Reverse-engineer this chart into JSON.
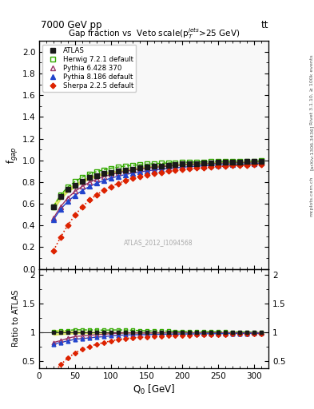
{
  "title_top": "7000 GeV pp",
  "title_right": "tt",
  "main_title": "Gap fraction vs  Veto scale(p$_T^{jets}$>25 GeV)",
  "watermark": "ATLAS_2012_I1094568",
  "right_label": "Rivet 3.1.10, ≥ 100k events",
  "arxiv_label": "[arXiv:1306.3436]",
  "mcplots_label": "mcplots.cern.ch",
  "xlabel": "Q$_0$ [GeV]",
  "ylabel_main": "f$_{gap}$",
  "ylabel_ratio": "Ratio to ATLAS",
  "xlim": [
    0,
    320
  ],
  "ylim_main": [
    0.0,
    2.1
  ],
  "ylim_ratio": [
    0.38,
    2.1
  ],
  "yticks_main": [
    0.0,
    0.2,
    0.4,
    0.6,
    0.8,
    1.0,
    1.2,
    1.4,
    1.6,
    1.8,
    2.0
  ],
  "yticks_ratio": [
    0.5,
    1.0,
    1.5,
    2.0
  ],
  "ytick_labels_ratio": [
    "0.5",
    "1",
    "1.5",
    "2"
  ],
  "xticks": [
    0,
    50,
    100,
    150,
    200,
    250,
    300
  ],
  "Q0": [
    20,
    30,
    40,
    50,
    60,
    70,
    80,
    90,
    100,
    110,
    120,
    130,
    140,
    150,
    160,
    170,
    180,
    190,
    200,
    210,
    220,
    230,
    240,
    250,
    260,
    270,
    280,
    290,
    300,
    310
  ],
  "atlas_y": [
    0.57,
    0.67,
    0.73,
    0.77,
    0.81,
    0.84,
    0.86,
    0.88,
    0.89,
    0.9,
    0.91,
    0.92,
    0.93,
    0.94,
    0.945,
    0.95,
    0.955,
    0.96,
    0.965,
    0.97,
    0.972,
    0.975,
    0.978,
    0.98,
    0.982,
    0.984,
    0.986,
    0.988,
    0.99,
    0.992
  ],
  "atlas_err": [
    0.025,
    0.022,
    0.018,
    0.014,
    0.012,
    0.01,
    0.009,
    0.008,
    0.007,
    0.007,
    0.006,
    0.006,
    0.006,
    0.005,
    0.005,
    0.005,
    0.005,
    0.004,
    0.004,
    0.004,
    0.004,
    0.003,
    0.003,
    0.003,
    0.003,
    0.003,
    0.003,
    0.003,
    0.003,
    0.003
  ],
  "herwig_y": [
    0.575,
    0.685,
    0.755,
    0.805,
    0.845,
    0.875,
    0.897,
    0.913,
    0.927,
    0.938,
    0.947,
    0.954,
    0.96,
    0.965,
    0.969,
    0.973,
    0.976,
    0.978,
    0.981,
    0.983,
    0.985,
    0.986,
    0.988,
    0.989,
    0.99,
    0.991,
    0.992,
    0.993,
    0.994,
    0.995
  ],
  "pythia6_y": [
    0.47,
    0.575,
    0.655,
    0.715,
    0.76,
    0.797,
    0.826,
    0.85,
    0.87,
    0.886,
    0.899,
    0.91,
    0.919,
    0.928,
    0.935,
    0.941,
    0.947,
    0.952,
    0.957,
    0.961,
    0.964,
    0.967,
    0.97,
    0.973,
    0.975,
    0.977,
    0.979,
    0.981,
    0.983,
    0.985
  ],
  "pythia8_y": [
    0.455,
    0.552,
    0.623,
    0.678,
    0.722,
    0.759,
    0.789,
    0.814,
    0.836,
    0.854,
    0.869,
    0.882,
    0.893,
    0.903,
    0.911,
    0.919,
    0.925,
    0.931,
    0.937,
    0.942,
    0.946,
    0.95,
    0.954,
    0.957,
    0.96,
    0.963,
    0.966,
    0.968,
    0.971,
    0.973
  ],
  "sherpa_y": [
    0.17,
    0.295,
    0.405,
    0.497,
    0.572,
    0.634,
    0.683,
    0.724,
    0.758,
    0.787,
    0.812,
    0.833,
    0.851,
    0.867,
    0.88,
    0.891,
    0.901,
    0.909,
    0.917,
    0.923,
    0.929,
    0.934,
    0.939,
    0.943,
    0.947,
    0.951,
    0.954,
    0.957,
    0.96,
    0.963
  ],
  "atlas_color": "#1a1a1a",
  "herwig_color": "#33aa00",
  "pythia6_color": "#993366",
  "pythia8_color": "#2244cc",
  "sherpa_color": "#dd2200",
  "band_color": "#ccdd00",
  "bg_color": "#ffffff",
  "panel_bg": "#f8f8f8"
}
